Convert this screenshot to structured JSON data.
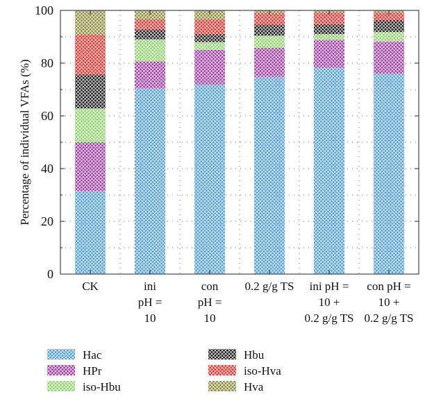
{
  "chart_data": {
    "type": "bar",
    "stacked": true,
    "ylabel": "Percentage of individual VFAs (%)",
    "ylim": [
      0,
      100
    ],
    "yticks": [
      0,
      20,
      40,
      60,
      80,
      100
    ],
    "grid": "dotted",
    "legend_position": "bottom",
    "categories": [
      [
        "CK"
      ],
      [
        "ini",
        "pH =",
        "10"
      ],
      [
        "con",
        "pH =",
        "10"
      ],
      [
        "0.2 g/g TS"
      ],
      [
        "ini pH =",
        "10 +",
        "0.2 g/g TS"
      ],
      [
        "con pH =",
        "10 +",
        "0.2 g/g TS"
      ]
    ],
    "series": [
      {
        "name": "Hac",
        "color": "#4f9edb",
        "values": [
          31.5,
          70.5,
          71.8,
          74.8,
          78.3,
          76.0
        ]
      },
      {
        "name": "HPr",
        "color": "#a23aa8",
        "values": [
          18.5,
          10.2,
          13.2,
          11.0,
          10.5,
          12.2
        ]
      },
      {
        "name": "iso-Hbu",
        "color": "#8fd26c",
        "values": [
          12.8,
          8.3,
          3.0,
          4.6,
          2.2,
          3.6
        ]
      },
      {
        "name": "Hbu",
        "color": "#1e1e1e",
        "values": [
          12.9,
          3.8,
          3.0,
          4.2,
          3.8,
          4.5
        ]
      },
      {
        "name": "iso-Hva",
        "color": "#f0302a",
        "values": [
          15.2,
          4.0,
          5.8,
          4.5,
          4.5,
          3.0
        ]
      },
      {
        "name": "Hva",
        "color": "#8b8b3a",
        "values": [
          9.1,
          3.2,
          3.2,
          0.9,
          0.7,
          0.7
        ]
      }
    ]
  }
}
